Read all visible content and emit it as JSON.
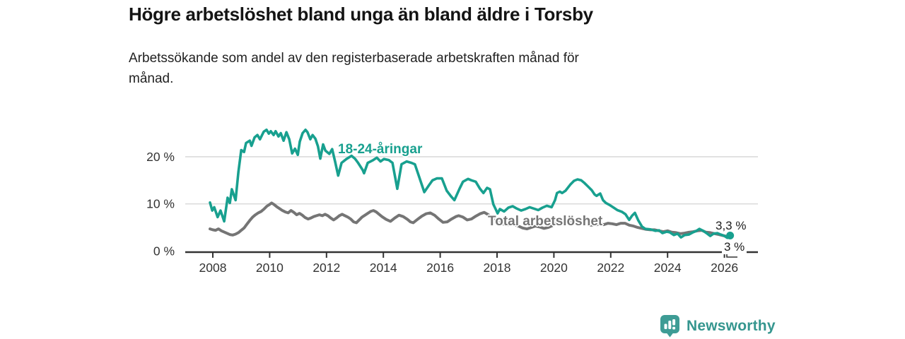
{
  "header": {
    "title": "Högre arbetslöshet bland unga än bland äldre i Torsby",
    "subtitle": "Arbetssökande som andel av den registerbaserade arbetskraften månad för månad."
  },
  "chart_data": {
    "type": "line",
    "title": "Högre arbetslöshet bland unga än bland äldre i Torsby",
    "xlabel": "",
    "ylabel": "",
    "grid": "horizontal-only",
    "legend_position": "inline-on-lines",
    "xlim": [
      2007.0,
      2027.2
    ],
    "ylim": [
      0,
      26.5
    ],
    "x_ticks": [
      2008,
      2010,
      2012,
      2014,
      2016,
      2018,
      2020,
      2022,
      2024,
      2026
    ],
    "y_ticks": [
      {
        "value": 0,
        "label": "0 %"
      },
      {
        "value": 10,
        "label": "10 %"
      },
      {
        "value": 20,
        "label": "20 %"
      }
    ],
    "unit": "%",
    "series": [
      {
        "name": "18-24-åringar",
        "color": "#18A08F",
        "end_label": "3,3 %",
        "end_value": 3.3,
        "points": [
          [
            2007.9,
            10.3
          ],
          [
            2007.98,
            8.6
          ],
          [
            2008.05,
            9.3
          ],
          [
            2008.17,
            7.2
          ],
          [
            2008.27,
            8.6
          ],
          [
            2008.4,
            6.3
          ],
          [
            2008.52,
            11.3
          ],
          [
            2008.6,
            10.2
          ],
          [
            2008.67,
            13.1
          ],
          [
            2008.8,
            10.8
          ],
          [
            2008.9,
            16.8
          ],
          [
            2009.0,
            21.4
          ],
          [
            2009.1,
            21.0
          ],
          [
            2009.17,
            22.9
          ],
          [
            2009.3,
            23.4
          ],
          [
            2009.36,
            22.3
          ],
          [
            2009.47,
            24.1
          ],
          [
            2009.57,
            24.6
          ],
          [
            2009.66,
            23.7
          ],
          [
            2009.79,
            25.3
          ],
          [
            2009.89,
            25.7
          ],
          [
            2009.97,
            24.9
          ],
          [
            2010.04,
            25.4
          ],
          [
            2010.14,
            24.6
          ],
          [
            2010.21,
            25.4
          ],
          [
            2010.31,
            24.3
          ],
          [
            2010.39,
            25.0
          ],
          [
            2010.49,
            23.4
          ],
          [
            2010.59,
            25.2
          ],
          [
            2010.69,
            23.7
          ],
          [
            2010.79,
            20.7
          ],
          [
            2010.89,
            21.7
          ],
          [
            2010.99,
            20.4
          ],
          [
            2011.06,
            23.2
          ],
          [
            2011.16,
            25.0
          ],
          [
            2011.26,
            25.7
          ],
          [
            2011.33,
            25.2
          ],
          [
            2011.43,
            23.7
          ],
          [
            2011.51,
            24.6
          ],
          [
            2011.61,
            23.8
          ],
          [
            2011.7,
            22.2
          ],
          [
            2011.78,
            19.6
          ],
          [
            2011.88,
            22.6
          ],
          [
            2011.96,
            21.3
          ],
          [
            2012.1,
            20.6
          ],
          [
            2012.2,
            21.6
          ],
          [
            2012.3,
            19.0
          ],
          [
            2012.41,
            16.0
          ],
          [
            2012.53,
            18.7
          ],
          [
            2012.7,
            19.5
          ],
          [
            2012.88,
            20.2
          ],
          [
            2013.0,
            19.6
          ],
          [
            2013.1,
            18.8
          ],
          [
            2013.27,
            17.2
          ],
          [
            2013.32,
            16.5
          ],
          [
            2013.45,
            18.7
          ],
          [
            2013.62,
            19.2
          ],
          [
            2013.77,
            19.8
          ],
          [
            2013.9,
            19.0
          ],
          [
            2014.02,
            19.5
          ],
          [
            2014.19,
            19.3
          ],
          [
            2014.32,
            18.7
          ],
          [
            2014.49,
            13.2
          ],
          [
            2014.64,
            18.4
          ],
          [
            2014.82,
            19.0
          ],
          [
            2014.99,
            18.7
          ],
          [
            2015.11,
            18.4
          ],
          [
            2015.26,
            15.7
          ],
          [
            2015.44,
            12.5
          ],
          [
            2015.61,
            14.0
          ],
          [
            2015.73,
            15.0
          ],
          [
            2015.88,
            15.4
          ],
          [
            2016.06,
            15.4
          ],
          [
            2016.23,
            12.8
          ],
          [
            2016.38,
            11.6
          ],
          [
            2016.5,
            10.8
          ],
          [
            2016.68,
            13.2
          ],
          [
            2016.8,
            14.7
          ],
          [
            2016.98,
            15.3
          ],
          [
            2017.1,
            15.0
          ],
          [
            2017.25,
            14.7
          ],
          [
            2017.4,
            13.2
          ],
          [
            2017.52,
            12.3
          ],
          [
            2017.65,
            13.4
          ],
          [
            2017.75,
            13.1
          ],
          [
            2017.87,
            9.9
          ],
          [
            2017.95,
            8.9
          ],
          [
            2018.02,
            8.0
          ],
          [
            2018.1,
            8.9
          ],
          [
            2018.25,
            8.4
          ],
          [
            2018.4,
            9.2
          ],
          [
            2018.55,
            9.5
          ],
          [
            2018.7,
            9.0
          ],
          [
            2018.85,
            8.6
          ],
          [
            2019.0,
            8.9
          ],
          [
            2019.15,
            9.3
          ],
          [
            2019.3,
            9.0
          ],
          [
            2019.45,
            8.7
          ],
          [
            2019.6,
            9.2
          ],
          [
            2019.75,
            9.6
          ],
          [
            2019.92,
            9.3
          ],
          [
            2020.04,
            10.8
          ],
          [
            2020.11,
            12.3
          ],
          [
            2020.21,
            12.6
          ],
          [
            2020.29,
            12.3
          ],
          [
            2020.41,
            12.8
          ],
          [
            2020.58,
            14.1
          ],
          [
            2020.71,
            14.9
          ],
          [
            2020.83,
            15.2
          ],
          [
            2020.96,
            15.0
          ],
          [
            2021.08,
            14.4
          ],
          [
            2021.2,
            13.7
          ],
          [
            2021.33,
            12.9
          ],
          [
            2021.43,
            12.0
          ],
          [
            2021.5,
            11.7
          ],
          [
            2021.63,
            12.2
          ],
          [
            2021.73,
            10.8
          ],
          [
            2021.83,
            10.2
          ],
          [
            2021.95,
            9.8
          ],
          [
            2022.08,
            9.3
          ],
          [
            2022.23,
            8.7
          ],
          [
            2022.4,
            8.3
          ],
          [
            2022.52,
            7.8
          ],
          [
            2022.65,
            6.6
          ],
          [
            2022.75,
            7.5
          ],
          [
            2022.85,
            8.1
          ],
          [
            2022.97,
            6.5
          ],
          [
            2023.1,
            5.2
          ],
          [
            2023.22,
            4.7
          ],
          [
            2023.4,
            4.6
          ],
          [
            2023.57,
            4.3
          ],
          [
            2023.7,
            4.4
          ],
          [
            2023.82,
            3.8
          ],
          [
            2023.97,
            4.1
          ],
          [
            2024.07,
            4.0
          ],
          [
            2024.22,
            3.4
          ],
          [
            2024.35,
            3.7
          ],
          [
            2024.47,
            2.9
          ],
          [
            2024.6,
            3.4
          ],
          [
            2024.75,
            3.5
          ],
          [
            2024.9,
            4.0
          ],
          [
            2025.02,
            4.3
          ],
          [
            2025.12,
            4.7
          ],
          [
            2025.25,
            4.3
          ],
          [
            2025.37,
            3.8
          ],
          [
            2025.5,
            3.2
          ],
          [
            2025.62,
            3.7
          ],
          [
            2025.75,
            3.8
          ],
          [
            2025.87,
            3.5
          ],
          [
            2026.0,
            3.2
          ],
          [
            2026.1,
            2.8
          ],
          [
            2026.2,
            3.3
          ]
        ]
      },
      {
        "name": "Total arbetslöshet",
        "color": "#757575",
        "end_label": "3 %",
        "end_value": 3.0,
        "points": [
          [
            2007.9,
            4.7
          ],
          [
            2008.0,
            4.5
          ],
          [
            2008.1,
            4.4
          ],
          [
            2008.2,
            4.7
          ],
          [
            2008.3,
            4.3
          ],
          [
            2008.45,
            3.9
          ],
          [
            2008.6,
            3.5
          ],
          [
            2008.7,
            3.4
          ],
          [
            2008.8,
            3.6
          ],
          [
            2008.9,
            3.9
          ],
          [
            2009.0,
            4.4
          ],
          [
            2009.1,
            4.9
          ],
          [
            2009.2,
            5.7
          ],
          [
            2009.3,
            6.5
          ],
          [
            2009.4,
            7.2
          ],
          [
            2009.5,
            7.7
          ],
          [
            2009.6,
            8.1
          ],
          [
            2009.7,
            8.4
          ],
          [
            2009.8,
            8.9
          ],
          [
            2009.9,
            9.5
          ],
          [
            2010.0,
            9.9
          ],
          [
            2010.07,
            10.2
          ],
          [
            2010.15,
            9.9
          ],
          [
            2010.25,
            9.4
          ],
          [
            2010.35,
            9.0
          ],
          [
            2010.45,
            8.6
          ],
          [
            2010.55,
            8.3
          ],
          [
            2010.65,
            8.1
          ],
          [
            2010.75,
            8.6
          ],
          [
            2010.85,
            8.2
          ],
          [
            2010.95,
            7.7
          ],
          [
            2011.05,
            8.0
          ],
          [
            2011.15,
            7.6
          ],
          [
            2011.25,
            7.1
          ],
          [
            2011.35,
            6.8
          ],
          [
            2011.45,
            7.0
          ],
          [
            2011.55,
            7.3
          ],
          [
            2011.65,
            7.5
          ],
          [
            2011.75,
            7.7
          ],
          [
            2011.85,
            7.5
          ],
          [
            2011.95,
            7.8
          ],
          [
            2012.05,
            7.5
          ],
          [
            2012.15,
            7.0
          ],
          [
            2012.25,
            6.6
          ],
          [
            2012.35,
            7.0
          ],
          [
            2012.45,
            7.5
          ],
          [
            2012.55,
            7.8
          ],
          [
            2012.65,
            7.5
          ],
          [
            2012.75,
            7.2
          ],
          [
            2012.85,
            6.8
          ],
          [
            2012.95,
            6.2
          ],
          [
            2013.05,
            6.0
          ],
          [
            2013.15,
            6.6
          ],
          [
            2013.25,
            7.2
          ],
          [
            2013.4,
            7.8
          ],
          [
            2013.55,
            8.4
          ],
          [
            2013.65,
            8.6
          ],
          [
            2013.75,
            8.3
          ],
          [
            2013.85,
            7.8
          ],
          [
            2013.95,
            7.3
          ],
          [
            2014.1,
            6.7
          ],
          [
            2014.25,
            6.3
          ],
          [
            2014.4,
            7.0
          ],
          [
            2014.55,
            7.6
          ],
          [
            2014.7,
            7.3
          ],
          [
            2014.85,
            6.7
          ],
          [
            2014.95,
            6.2
          ],
          [
            2015.05,
            6.0
          ],
          [
            2015.2,
            6.7
          ],
          [
            2015.35,
            7.4
          ],
          [
            2015.5,
            7.9
          ],
          [
            2015.65,
            8.1
          ],
          [
            2015.8,
            7.6
          ],
          [
            2015.95,
            6.8
          ],
          [
            2016.1,
            6.1
          ],
          [
            2016.25,
            6.2
          ],
          [
            2016.4,
            6.8
          ],
          [
            2016.55,
            7.3
          ],
          [
            2016.65,
            7.5
          ],
          [
            2016.8,
            7.2
          ],
          [
            2016.95,
            6.6
          ],
          [
            2017.1,
            6.8
          ],
          [
            2017.25,
            7.4
          ],
          [
            2017.4,
            7.9
          ],
          [
            2017.55,
            8.2
          ],
          [
            2017.7,
            7.7
          ],
          [
            2017.85,
            6.9
          ],
          [
            2018.0,
            6.3
          ],
          [
            2018.15,
            5.9
          ],
          [
            2018.3,
            5.6
          ],
          [
            2018.45,
            5.6
          ],
          [
            2018.6,
            5.7
          ],
          [
            2018.75,
            5.3
          ],
          [
            2018.9,
            4.9
          ],
          [
            2019.05,
            4.7
          ],
          [
            2019.2,
            5.0
          ],
          [
            2019.35,
            5.3
          ],
          [
            2019.5,
            5.1
          ],
          [
            2019.65,
            4.8
          ],
          [
            2019.8,
            5.0
          ],
          [
            2019.95,
            5.4
          ],
          [
            2020.1,
            5.9
          ],
          [
            2020.25,
            6.3
          ],
          [
            2020.4,
            6.1
          ],
          [
            2020.55,
            6.1
          ],
          [
            2020.7,
            6.3
          ],
          [
            2020.85,
            6.0
          ],
          [
            2021.0,
            5.9
          ],
          [
            2021.15,
            5.8
          ],
          [
            2021.3,
            5.5
          ],
          [
            2021.45,
            5.5
          ],
          [
            2021.6,
            5.8
          ],
          [
            2021.75,
            5.6
          ],
          [
            2021.9,
            5.9
          ],
          [
            2022.05,
            5.8
          ],
          [
            2022.2,
            5.6
          ],
          [
            2022.35,
            5.9
          ],
          [
            2022.5,
            5.9
          ],
          [
            2022.65,
            5.5
          ],
          [
            2022.8,
            5.3
          ],
          [
            2022.95,
            5.0
          ],
          [
            2023.1,
            4.8
          ],
          [
            2023.25,
            4.6
          ],
          [
            2023.4,
            4.5
          ],
          [
            2023.55,
            4.5
          ],
          [
            2023.7,
            4.3
          ],
          [
            2023.85,
            4.1
          ],
          [
            2024.0,
            4.3
          ],
          [
            2024.15,
            4.0
          ],
          [
            2024.3,
            3.9
          ],
          [
            2024.45,
            3.7
          ],
          [
            2024.6,
            3.8
          ],
          [
            2024.75,
            4.0
          ],
          [
            2024.9,
            4.1
          ],
          [
            2025.05,
            4.3
          ],
          [
            2025.2,
            4.4
          ],
          [
            2025.35,
            4.0
          ],
          [
            2025.5,
            3.9
          ],
          [
            2025.65,
            3.7
          ],
          [
            2025.8,
            3.5
          ],
          [
            2025.95,
            3.3
          ],
          [
            2026.1,
            3.1
          ],
          [
            2026.2,
            3.0
          ]
        ]
      }
    ],
    "colors": {
      "accent_teal": "#18A08F",
      "neutral_gray": "#757575",
      "gridline": "#dcdcdc",
      "axis": "#333333",
      "text": "#1c1c1c"
    }
  },
  "footer": {
    "brand": "Newsworthy"
  }
}
